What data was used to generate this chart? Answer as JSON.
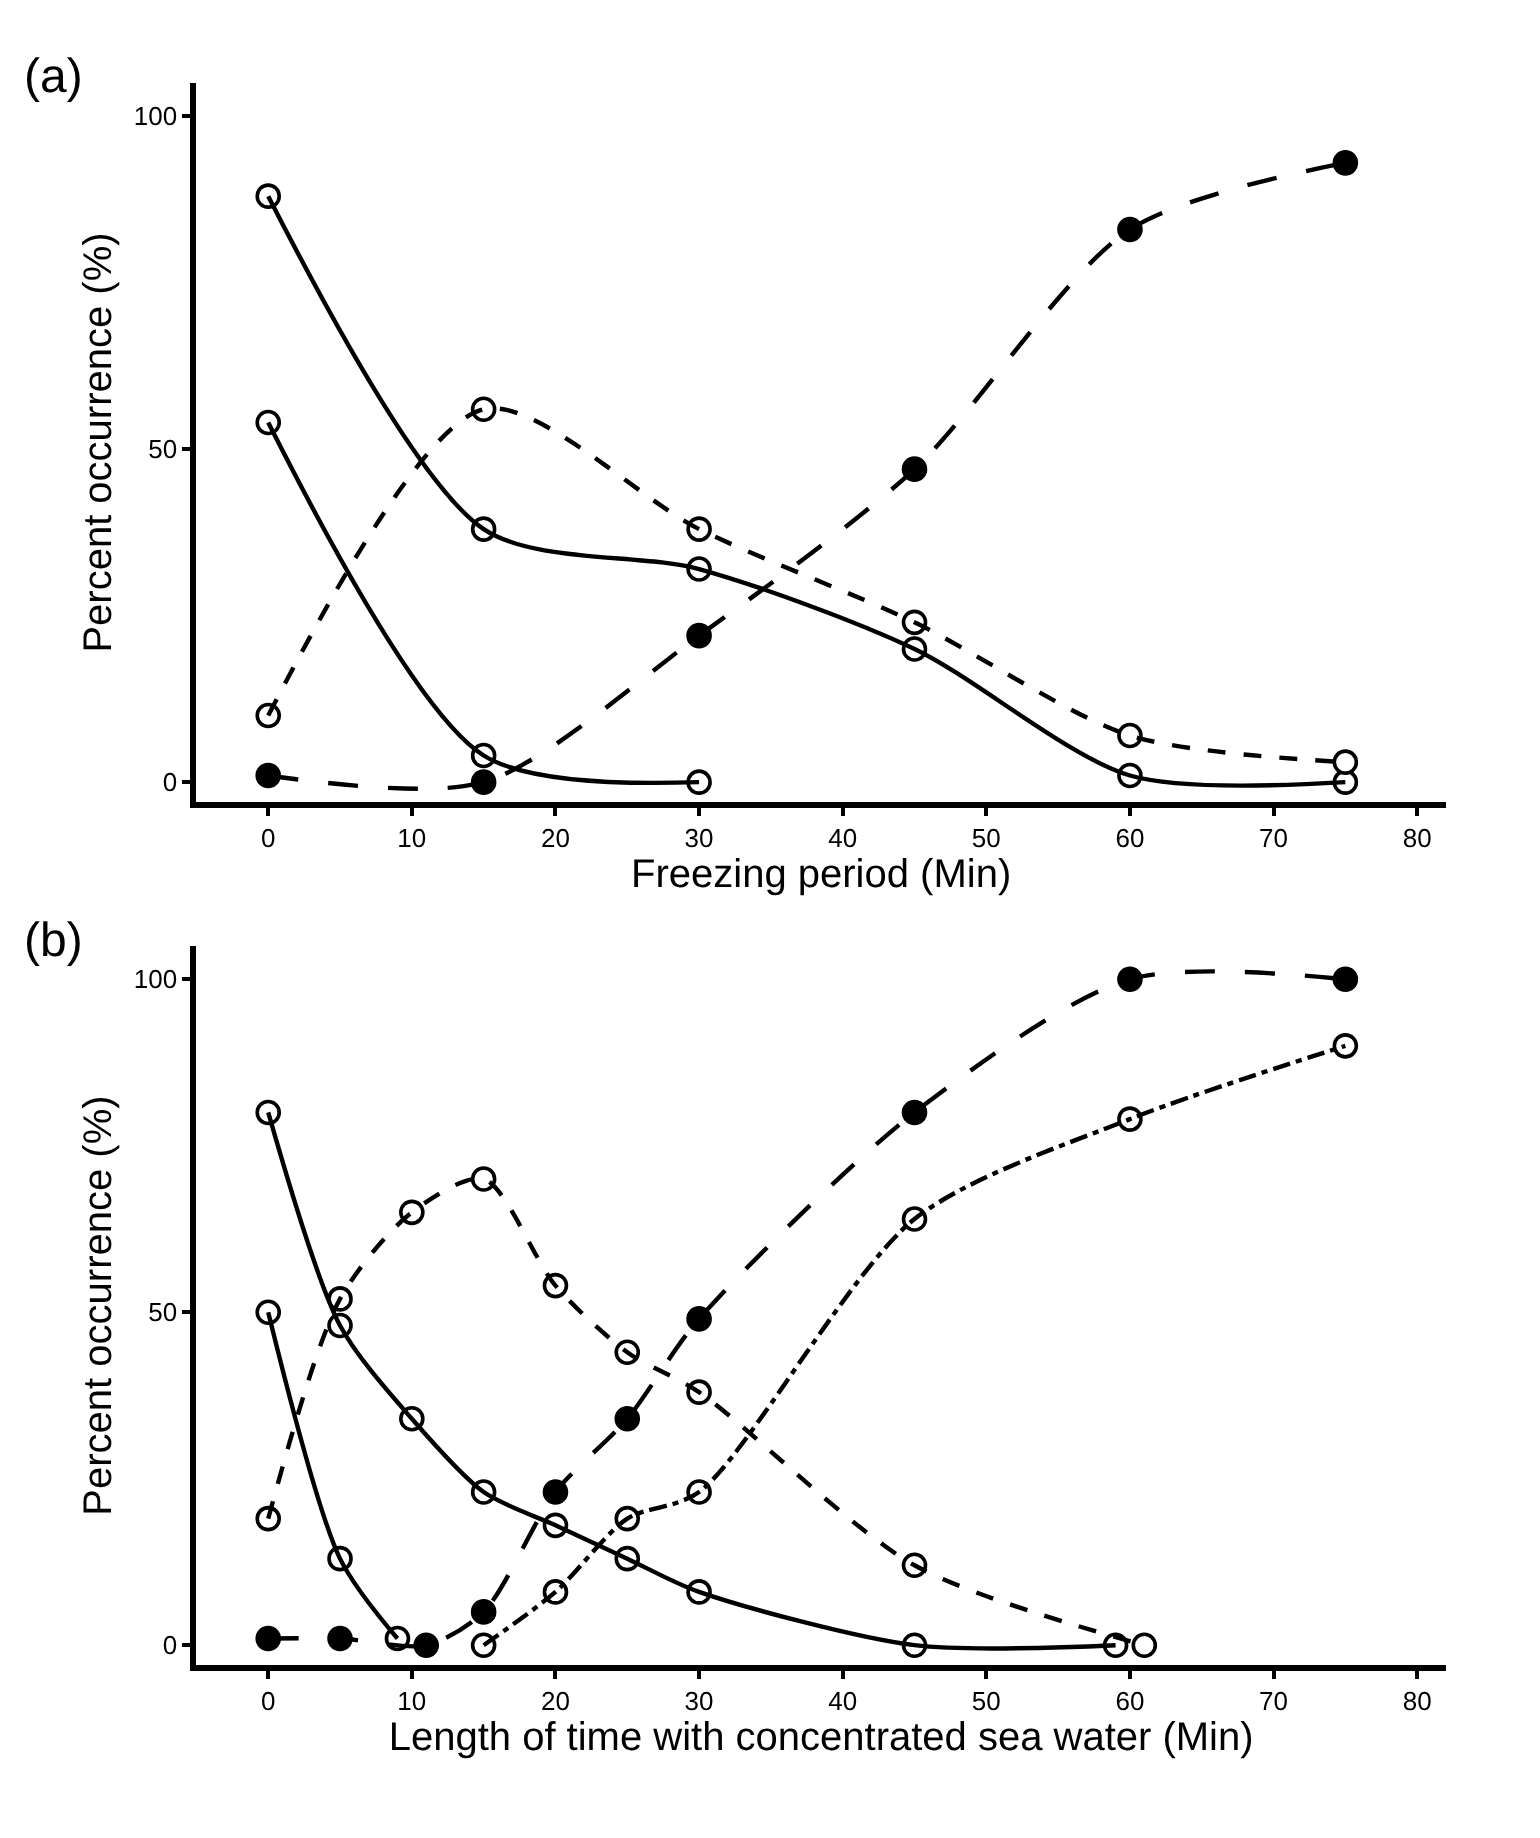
{
  "chart_data": [
    {
      "type": "line",
      "annotations": [
        "(a)"
      ],
      "xlabel": "Freezing period (Min)",
      "ylabel": "Percent occurrence (%)",
      "xlim": [
        -5,
        82
      ],
      "ylim": [
        -3,
        105
      ],
      "xticks": [
        0,
        10,
        20,
        30,
        40,
        50,
        60,
        70,
        80
      ],
      "yticks": [
        0,
        50,
        100
      ],
      "series": [
        {
          "color": "#000000",
          "marker": "circle",
          "line_style": "solid",
          "x": [
            0,
            15,
            30,
            45,
            60,
            75
          ],
          "values": [
            88,
            38,
            32,
            20,
            1,
            0
          ]
        },
        {
          "color": "#000000",
          "marker": "circle",
          "line_style": "dotted",
          "x": [
            0,
            15,
            30,
            45,
            60,
            75
          ],
          "values": [
            10,
            56,
            38,
            24,
            7,
            3
          ]
        },
        {
          "color": "#000000",
          "marker": "circle",
          "line_style": "solid",
          "x": [
            0,
            15,
            30
          ],
          "values": [
            54,
            4,
            0
          ]
        },
        {
          "color": "#000000",
          "colors": [
            "#000000",
            "#000000",
            "#000000",
            "#000000",
            "#000000",
            "#000000"
          ],
          "marker": "circle",
          "line_style": "dashed",
          "x": [
            0,
            15,
            30,
            45,
            60,
            75
          ],
          "values": [
            1,
            0,
            22,
            47,
            83,
            93
          ]
        }
      ]
    },
    {
      "type": "line",
      "annotations": [
        "(b)"
      ],
      "xlabel": "Length of time with concentrated sea water (Min)",
      "ylabel": "Percent occurrence (%)",
      "xlim": [
        -5,
        82
      ],
      "ylim": [
        -3,
        105
      ],
      "xticks": [
        0,
        10,
        20,
        30,
        40,
        50,
        60,
        70,
        80
      ],
      "yticks": [
        0,
        50,
        100
      ],
      "series": [
        {
          "color": "#000000",
          "marker": "circle",
          "line_style": "solid",
          "x": [
            0,
            5,
            10,
            15,
            20,
            25,
            30,
            45,
            59
          ],
          "values": [
            80,
            48,
            34,
            23,
            18,
            13,
            8,
            0,
            0
          ]
        },
        {
          "color": "#000000",
          "marker": "circle",
          "line_style": "dotted",
          "x": [
            0,
            5,
            10,
            15,
            20,
            25,
            30,
            45,
            61
          ],
          "values": [
            19,
            52,
            65,
            70,
            54,
            44,
            38,
            12,
            0
          ]
        },
        {
          "color": "#000000",
          "marker": "circle",
          "line_style": "solid",
          "x": [
            0,
            5,
            9
          ],
          "values": [
            50,
            13,
            1
          ]
        },
        {
          "color": "#000000",
          "colors": [
            "#000000",
            "#000000",
            "#000000",
            "#000000",
            "#000000",
            "#000000",
            "#000000",
            "#000000",
            "#000000",
            "#000000"
          ],
          "marker": "circle",
          "line_style": "dashed",
          "x": [
            0,
            5,
            11,
            15,
            20,
            25,
            30,
            45,
            60,
            75
          ],
          "values": [
            1,
            1,
            0,
            5,
            23,
            34,
            49,
            80,
            100,
            100
          ]
        },
        {
          "color": "#000000",
          "marker": "circle",
          "line_style": "dashdot",
          "x": [
            15,
            20,
            25,
            30,
            45,
            60,
            75
          ],
          "values": [
            0,
            8,
            19,
            23,
            64,
            79,
            90
          ]
        }
      ]
    }
  ]
}
